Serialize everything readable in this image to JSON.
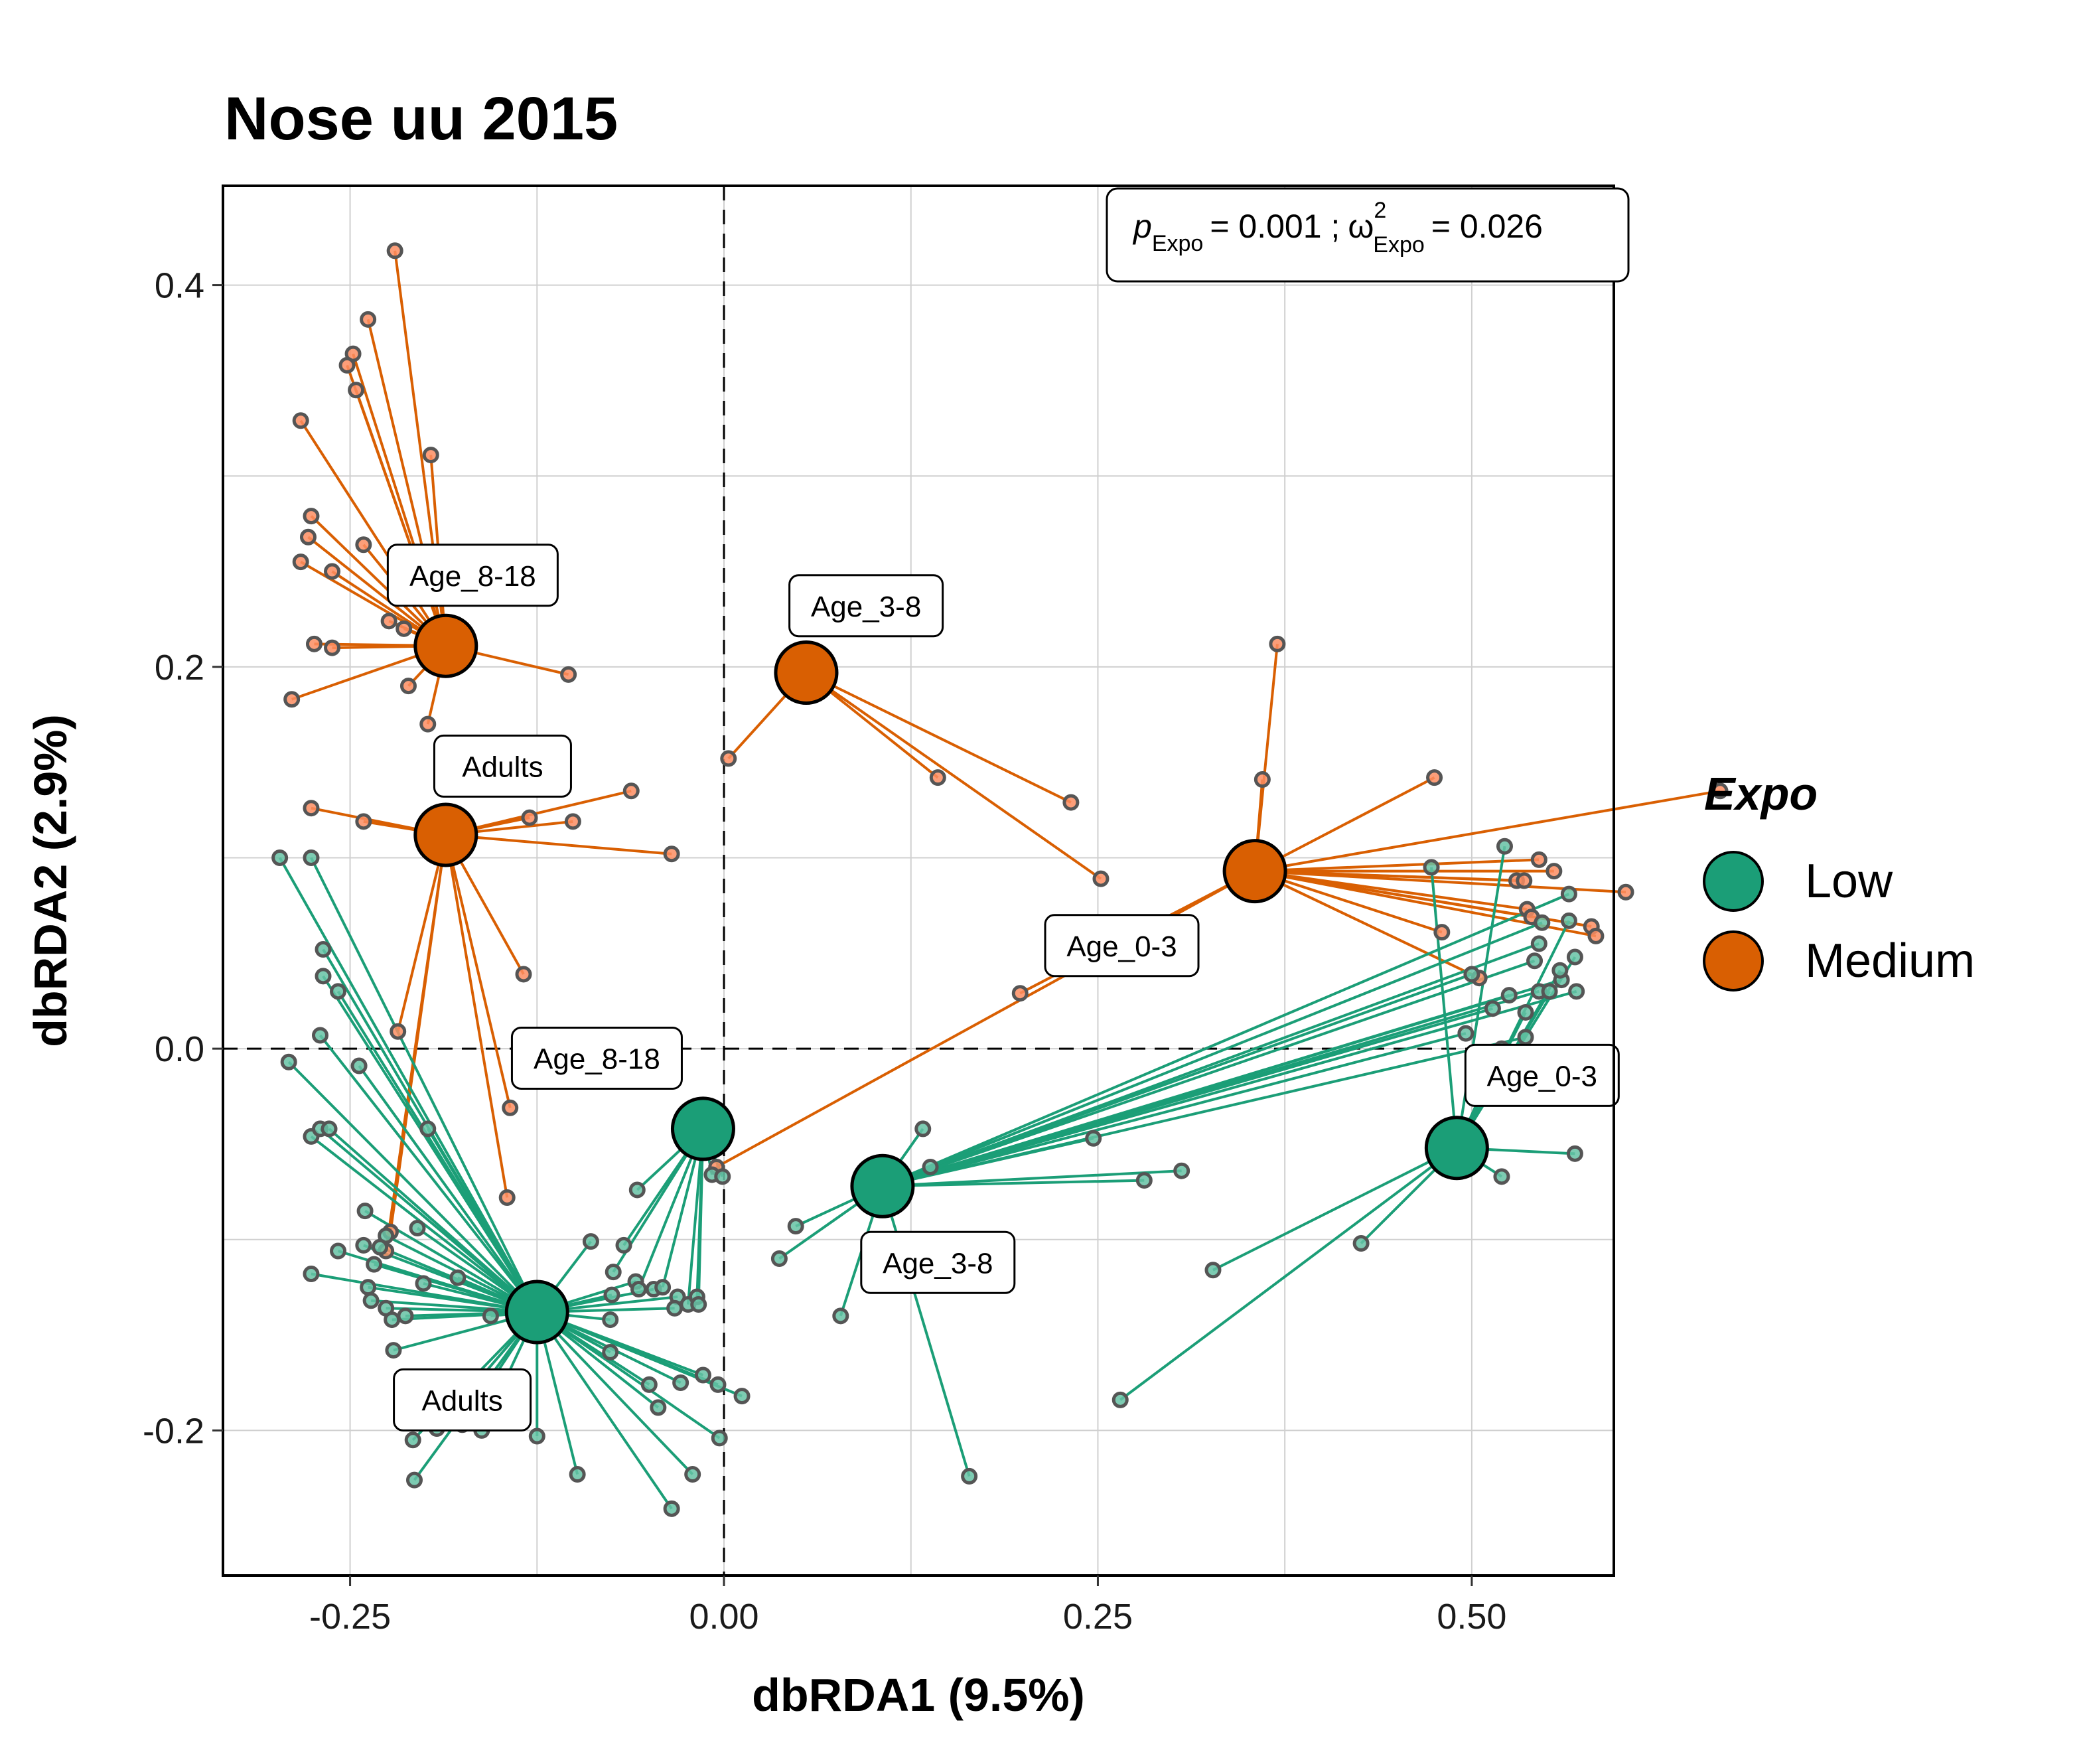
{
  "chart_data": {
    "type": "scatter",
    "title": "Nose uu 2015",
    "xlabel": "dbRDA1 (9.5%)",
    "ylabel": "dbRDA2 (2.9%)",
    "xlim": [
      -0.335,
      0.595
    ],
    "ylim": [
      -0.276,
      0.452
    ],
    "x_ticks": [
      -0.25,
      0.0,
      0.25,
      0.5
    ],
    "x_tick_labels": [
      "-0.25",
      "0.00",
      "0.25",
      "0.50"
    ],
    "y_ticks": [
      -0.2,
      0.0,
      0.2,
      0.4
    ],
    "y_tick_labels": [
      "-0.2",
      "0.0",
      "0.2",
      "0.4"
    ],
    "grid": true,
    "reference_lines": {
      "x": 0.0,
      "y": 0.0,
      "style": "dashed"
    },
    "annotation": {
      "p_symbol": "p",
      "p_sub": "Expo",
      "p_value": "= 0.001 ;",
      "omega_symbol": "ω",
      "omega_sup": "2",
      "omega_sub": "Expo",
      "omega_value": "= 0.026"
    },
    "legend": {
      "title": "Expo",
      "position": "right",
      "entries": [
        {
          "label": "Low",
          "color": "#1b9e77"
        },
        {
          "label": "Medium",
          "color": "#d95f02"
        }
      ]
    },
    "groups": [
      {
        "expo": "Medium",
        "label": "Age_8-18",
        "color": "#d95f02",
        "centroid": [
          -0.186,
          0.211
        ],
        "label_pos": [
          -0.168,
          0.248
        ],
        "points": [
          [
            -0.22,
            0.418
          ],
          [
            -0.238,
            0.382
          ],
          [
            -0.248,
            0.364
          ],
          [
            -0.252,
            0.358
          ],
          [
            -0.246,
            0.345
          ],
          [
            -0.196,
            0.311
          ],
          [
            -0.283,
            0.329
          ],
          [
            -0.276,
            0.279
          ],
          [
            -0.278,
            0.268
          ],
          [
            -0.241,
            0.264
          ],
          [
            -0.283,
            0.255
          ],
          [
            -0.262,
            0.25
          ],
          [
            -0.224,
            0.224
          ],
          [
            -0.214,
            0.22
          ],
          [
            -0.274,
            0.212
          ],
          [
            -0.262,
            0.21
          ],
          [
            -0.211,
            0.19
          ],
          [
            -0.289,
            0.183
          ],
          [
            -0.104,
            0.196
          ],
          [
            -0.198,
            0.17
          ]
        ]
      },
      {
        "expo": "Medium",
        "label": "Adults",
        "color": "#d95f02",
        "centroid": [
          -0.186,
          0.112
        ],
        "label_pos": [
          -0.148,
          0.148
        ],
        "points": [
          [
            -0.276,
            0.126
          ],
          [
            -0.241,
            0.119
          ],
          [
            -0.184,
            0.123
          ],
          [
            -0.13,
            0.121
          ],
          [
            -0.101,
            0.119
          ],
          [
            -0.062,
            0.135
          ],
          [
            -0.035,
            0.102
          ],
          [
            -0.218,
            0.009
          ],
          [
            -0.134,
            0.039
          ],
          [
            -0.143,
            -0.031
          ],
          [
            -0.145,
            -0.078
          ],
          [
            -0.226,
            -0.106
          ],
          [
            -0.223,
            -0.096
          ]
        ]
      },
      {
        "expo": "Medium",
        "label": "Age_3-8",
        "color": "#d95f02",
        "centroid": [
          0.055,
          0.197
        ],
        "label_pos": [
          0.095,
          0.232
        ],
        "points": [
          [
            0.003,
            0.152
          ],
          [
            0.143,
            0.142
          ],
          [
            0.232,
            0.129
          ],
          [
            0.252,
            0.089
          ]
        ]
      },
      {
        "expo": "Medium",
        "label": "Age_0-3",
        "color": "#d95f02",
        "centroid": [
          0.355,
          0.093
        ],
        "label_pos": [
          0.266,
          0.054
        ],
        "points": [
          [
            0.37,
            0.212
          ],
          [
            0.36,
            0.141
          ],
          [
            0.475,
            0.142
          ],
          [
            0.666,
            0.135
          ],
          [
            0.545,
            0.099
          ],
          [
            0.53,
            0.088
          ],
          [
            0.535,
            0.088
          ],
          [
            0.555,
            0.093
          ],
          [
            0.603,
            0.082
          ],
          [
            0.537,
            0.073
          ],
          [
            0.54,
            0.069
          ],
          [
            0.58,
            0.064
          ],
          [
            0.583,
            0.059
          ],
          [
            0.48,
            0.061
          ],
          [
            0.505,
            0.037
          ],
          [
            0.198,
            0.029
          ],
          [
            -0.005,
            -0.062
          ]
        ]
      },
      {
        "expo": "Low",
        "label": "Adults",
        "color": "#1b9e77",
        "centroid": [
          -0.125,
          -0.138
        ],
        "label_pos": [
          -0.175,
          -0.184
        ],
        "points": [
          [
            -0.297,
            0.1
          ],
          [
            -0.276,
            0.1
          ],
          [
            -0.291,
            -0.007
          ],
          [
            -0.268,
            0.052
          ],
          [
            -0.268,
            0.038
          ],
          [
            -0.258,
            0.03
          ],
          [
            -0.27,
            0.007
          ],
          [
            -0.244,
            -0.009
          ],
          [
            -0.276,
            -0.046
          ],
          [
            -0.27,
            -0.042
          ],
          [
            -0.264,
            -0.042
          ],
          [
            -0.198,
            -0.042
          ],
          [
            -0.24,
            -0.085
          ],
          [
            -0.241,
            -0.103
          ],
          [
            -0.276,
            -0.118
          ],
          [
            -0.258,
            -0.106
          ],
          [
            -0.226,
            -0.098
          ],
          [
            -0.205,
            -0.094
          ],
          [
            -0.23,
            -0.104
          ],
          [
            -0.234,
            -0.113
          ],
          [
            -0.238,
            -0.125
          ],
          [
            -0.226,
            -0.136
          ],
          [
            -0.236,
            -0.132
          ],
          [
            -0.213,
            -0.14
          ],
          [
            -0.222,
            -0.142
          ],
          [
            -0.201,
            -0.123
          ],
          [
            -0.178,
            -0.12
          ],
          [
            -0.156,
            -0.14
          ],
          [
            -0.089,
            -0.101
          ],
          [
            -0.075,
            -0.129
          ],
          [
            -0.059,
            -0.122
          ],
          [
            -0.076,
            -0.142
          ],
          [
            -0.047,
            -0.126
          ],
          [
            -0.031,
            -0.13
          ],
          [
            -0.033,
            -0.136
          ],
          [
            -0.076,
            -0.159
          ],
          [
            -0.05,
            -0.176
          ],
          [
            -0.044,
            -0.188
          ],
          [
            -0.029,
            -0.175
          ],
          [
            -0.014,
            -0.171
          ],
          [
            -0.004,
            -0.176
          ],
          [
            0.012,
            -0.182
          ],
          [
            -0.003,
            -0.204
          ],
          [
            -0.021,
            -0.223
          ],
          [
            -0.035,
            -0.241
          ],
          [
            -0.098,
            -0.223
          ],
          [
            -0.125,
            -0.203
          ],
          [
            -0.162,
            -0.2
          ],
          [
            -0.175,
            -0.197
          ],
          [
            -0.192,
            -0.199
          ],
          [
            -0.208,
            -0.205
          ],
          [
            -0.207,
            -0.226
          ],
          [
            -0.221,
            -0.158
          ]
        ]
      },
      {
        "expo": "Low",
        "label": "Age_8-18",
        "color": "#1b9e77",
        "centroid": [
          -0.014,
          -0.042
        ],
        "label_pos": [
          -0.085,
          -0.005
        ],
        "points": [
          [
            -0.058,
            -0.074
          ],
          [
            -0.067,
            -0.103
          ],
          [
            -0.074,
            -0.117
          ],
          [
            -0.057,
            -0.126
          ],
          [
            -0.041,
            -0.125
          ],
          [
            -0.024,
            -0.134
          ],
          [
            -0.018,
            -0.13
          ],
          [
            -0.017,
            -0.134
          ],
          [
            -0.008,
            -0.066
          ],
          [
            -0.001,
            -0.067
          ]
        ]
      },
      {
        "expo": "Low",
        "label": "Age_3-8",
        "color": "#1b9e77",
        "centroid": [
          0.106,
          -0.072
        ],
        "label_pos": [
          0.143,
          -0.112
        ],
        "points": [
          [
            0.048,
            -0.093
          ],
          [
            0.037,
            -0.11
          ],
          [
            0.078,
            -0.14
          ],
          [
            0.133,
            -0.042
          ],
          [
            0.138,
            -0.062
          ],
          [
            0.164,
            -0.224
          ],
          [
            0.281,
            -0.069
          ],
          [
            0.306,
            -0.064
          ],
          [
            0.247,
            -0.047
          ],
          [
            0.496,
            0.008
          ],
          [
            0.514,
            0.021
          ],
          [
            0.525,
            0.028
          ],
          [
            0.5,
            0.039
          ],
          [
            0.545,
            0.055
          ],
          [
            0.565,
            0.081
          ],
          [
            0.547,
            0.066
          ],
          [
            0.542,
            0.046
          ],
          [
            0.56,
            0.036
          ],
          [
            0.545,
            0.03
          ],
          [
            0.57,
            0.03
          ],
          [
            0.536,
            0.006
          ]
        ]
      },
      {
        "expo": "Low",
        "label": "Age_0-3",
        "color": "#1b9e77",
        "centroid": [
          0.49,
          -0.052
        ],
        "label_pos": [
          0.547,
          -0.014
        ],
        "points": [
          [
            0.522,
            0.106
          ],
          [
            0.473,
            0.095
          ],
          [
            0.565,
            0.067
          ],
          [
            0.569,
            0.048
          ],
          [
            0.559,
            0.041
          ],
          [
            0.552,
            0.03
          ],
          [
            0.536,
            0.019
          ],
          [
            0.52,
            0.0
          ],
          [
            0.569,
            -0.055
          ],
          [
            0.52,
            -0.067
          ],
          [
            0.426,
            -0.102
          ],
          [
            0.327,
            -0.116
          ],
          [
            0.265,
            -0.184
          ]
        ]
      }
    ]
  }
}
